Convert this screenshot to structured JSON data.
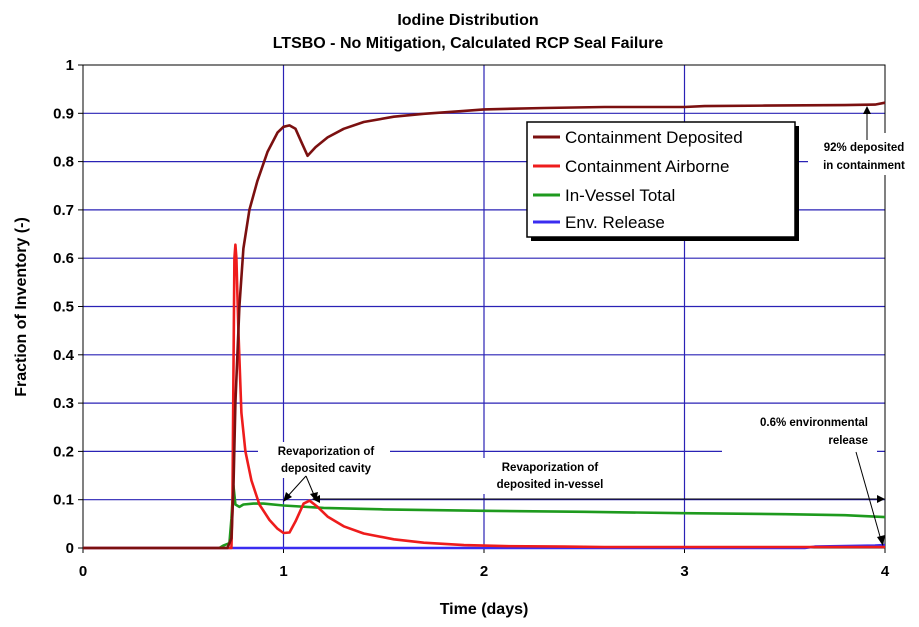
{
  "chart_data": {
    "type": "line",
    "title": "Iodine Distribution",
    "subtitle": "LTSBO - No Mitigation, Calculated RCP Seal Failure",
    "xlabel": "Time (days)",
    "ylabel": "Fraction of Inventory (-)",
    "xlim": [
      0,
      4
    ],
    "ylim": [
      0,
      1
    ],
    "xticks": [
      0,
      1,
      2,
      3,
      4
    ],
    "xtick_labels": [
      "0",
      "1",
      "2",
      "3",
      "4"
    ],
    "yticks": [
      0,
      0.1,
      0.2,
      0.3,
      0.4,
      0.5,
      0.6,
      0.7,
      0.8,
      0.9,
      1
    ],
    "ytick_labels": [
      "0",
      "0.1",
      "0.2",
      "0.3",
      "0.4",
      "0.5",
      "0.6",
      "0.7",
      "0.8",
      "0.9",
      "1"
    ],
    "grid": true,
    "legend_position": "upper-right",
    "series": [
      {
        "name": "Containment Deposited",
        "color": "#7b1010",
        "points": [
          [
            0,
            0
          ],
          [
            0.72,
            0
          ],
          [
            0.74,
            0.02
          ],
          [
            0.75,
            0.12
          ],
          [
            0.76,
            0.3
          ],
          [
            0.78,
            0.5
          ],
          [
            0.8,
            0.62
          ],
          [
            0.83,
            0.7
          ],
          [
            0.87,
            0.76
          ],
          [
            0.92,
            0.82
          ],
          [
            0.97,
            0.86
          ],
          [
            1.0,
            0.872
          ],
          [
            1.03,
            0.875
          ],
          [
            1.06,
            0.868
          ],
          [
            1.09,
            0.84
          ],
          [
            1.12,
            0.812
          ],
          [
            1.16,
            0.83
          ],
          [
            1.22,
            0.85
          ],
          [
            1.3,
            0.868
          ],
          [
            1.4,
            0.882
          ],
          [
            1.55,
            0.893
          ],
          [
            1.7,
            0.899
          ],
          [
            1.9,
            0.905
          ],
          [
            2.0,
            0.908
          ],
          [
            2.3,
            0.911
          ],
          [
            2.6,
            0.913
          ],
          [
            3.0,
            0.913
          ],
          [
            3.1,
            0.915
          ],
          [
            3.4,
            0.916
          ],
          [
            3.8,
            0.917
          ],
          [
            3.95,
            0.918
          ],
          [
            4.0,
            0.922
          ]
        ]
      },
      {
        "name": "Containment Airborne",
        "color": "#ee1c1c",
        "points": [
          [
            0,
            0
          ],
          [
            0.74,
            0
          ],
          [
            0.745,
            0.08
          ],
          [
            0.75,
            0.35
          ],
          [
            0.755,
            0.6
          ],
          [
            0.76,
            0.628
          ],
          [
            0.765,
            0.6
          ],
          [
            0.775,
            0.45
          ],
          [
            0.79,
            0.28
          ],
          [
            0.81,
            0.2
          ],
          [
            0.84,
            0.14
          ],
          [
            0.88,
            0.09
          ],
          [
            0.93,
            0.058
          ],
          [
            0.97,
            0.04
          ],
          [
            1.0,
            0.031
          ],
          [
            1.03,
            0.032
          ],
          [
            1.06,
            0.055
          ],
          [
            1.1,
            0.092
          ],
          [
            1.13,
            0.098
          ],
          [
            1.17,
            0.085
          ],
          [
            1.22,
            0.065
          ],
          [
            1.3,
            0.045
          ],
          [
            1.4,
            0.03
          ],
          [
            1.55,
            0.018
          ],
          [
            1.7,
            0.011
          ],
          [
            1.9,
            0.006
          ],
          [
            2.1,
            0.004
          ],
          [
            2.4,
            0.003
          ],
          [
            2.6,
            0.002
          ],
          [
            3.0,
            0.002
          ],
          [
            4.0,
            0.002
          ]
        ]
      },
      {
        "name": "In-Vessel Total",
        "color": "#1e9a1e",
        "points": [
          [
            0.68,
            0
          ],
          [
            0.7,
            0.005
          ],
          [
            0.73,
            0.01
          ],
          [
            0.74,
            0.06
          ],
          [
            0.75,
            0.13
          ],
          [
            0.76,
            0.09
          ],
          [
            0.78,
            0.085
          ],
          [
            0.8,
            0.09
          ],
          [
            0.85,
            0.092
          ],
          [
            0.9,
            0.092
          ],
          [
            1.0,
            0.088
          ],
          [
            1.2,
            0.083
          ],
          [
            1.5,
            0.08
          ],
          [
            2.0,
            0.077
          ],
          [
            2.5,
            0.075
          ],
          [
            3.0,
            0.072
          ],
          [
            3.5,
            0.07
          ],
          [
            3.8,
            0.068
          ],
          [
            4.0,
            0.064
          ]
        ]
      },
      {
        "name": "Env. Release",
        "color": "#3a2cf0",
        "points": [
          [
            0,
            0
          ],
          [
            3.6,
            0
          ],
          [
            3.65,
            0.003
          ],
          [
            3.8,
            0.004
          ],
          [
            3.95,
            0.005
          ],
          [
            4.0,
            0.006
          ]
        ]
      }
    ],
    "annotations": [
      {
        "lines": [
          "92% deposited",
          "in containment"
        ],
        "arrow_to": [
          3.97,
          0.915
        ]
      },
      {
        "lines": [
          "0.6% environmental",
          "release"
        ],
        "arrow_to": [
          3.99,
          0.006
        ]
      },
      {
        "lines": [
          "Revaporization of",
          "deposited cavity"
        ],
        "span": [
          1.0,
          1.13
        ],
        "y": 0.1
      },
      {
        "lines": [
          "Revaporization of",
          "deposited in-vessel"
        ],
        "span": [
          1.13,
          4.0
        ],
        "y": 0.1
      }
    ]
  }
}
